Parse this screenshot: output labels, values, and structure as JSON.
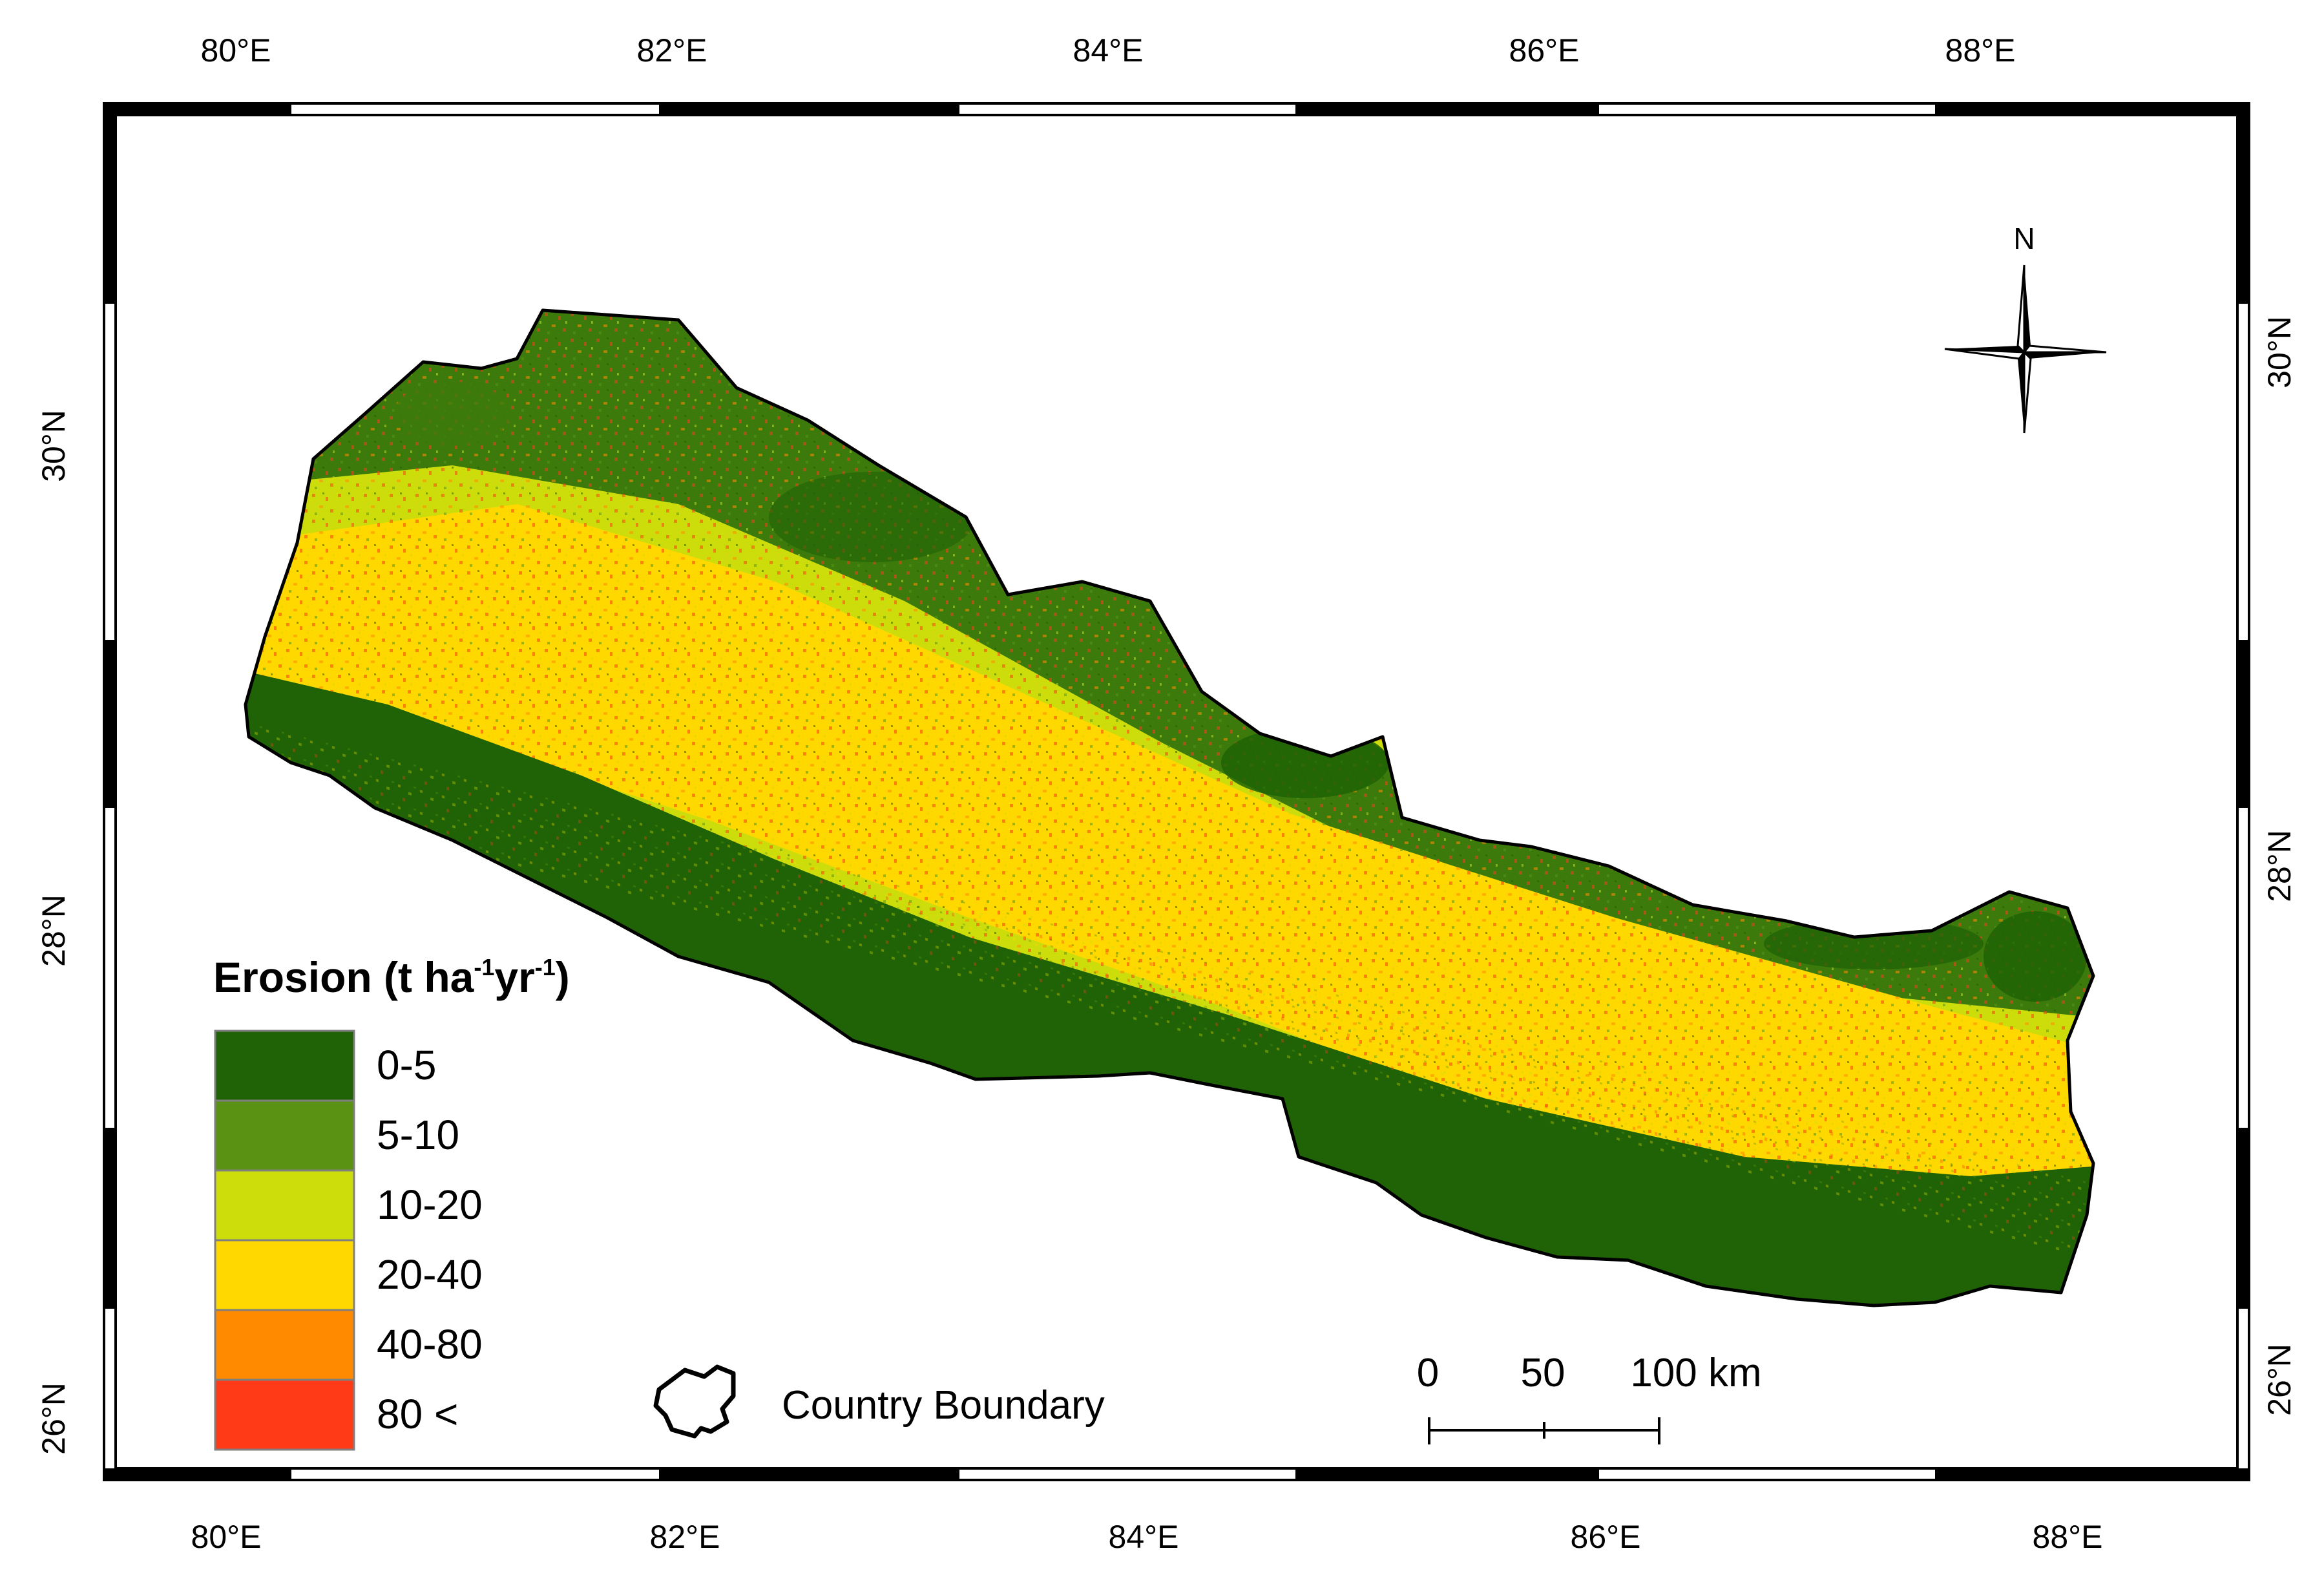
{
  "map": {
    "graticule": {
      "longitude_labels": [
        "80°E",
        "82°E",
        "84°E",
        "86°E",
        "88°E"
      ],
      "latitude_labels": [
        "30°N",
        "28°N",
        "26°N"
      ]
    },
    "north_arrow": {
      "label": "N"
    },
    "legend": {
      "title_main": "Erosion (t ha",
      "title_sup1": "-1",
      "title_mid": "yr",
      "title_sup2": "-1",
      "title_end": ")",
      "classes": [
        {
          "label": "0-5",
          "color": "#1f6306"
        },
        {
          "label": "5-10",
          "color": "#5a9313"
        },
        {
          "label": "10-20",
          "color": "#cddd0b"
        },
        {
          "label": "20-40",
          "color": "#ffd800"
        },
        {
          "label": "40-80",
          "color": "#ff8a00"
        },
        {
          "label": "80 <",
          "color": "#ff3a16"
        }
      ],
      "boundary_label": "Country Boundary"
    },
    "scale_bar": {
      "labels": [
        "0",
        "50",
        "100 km"
      ]
    }
  }
}
